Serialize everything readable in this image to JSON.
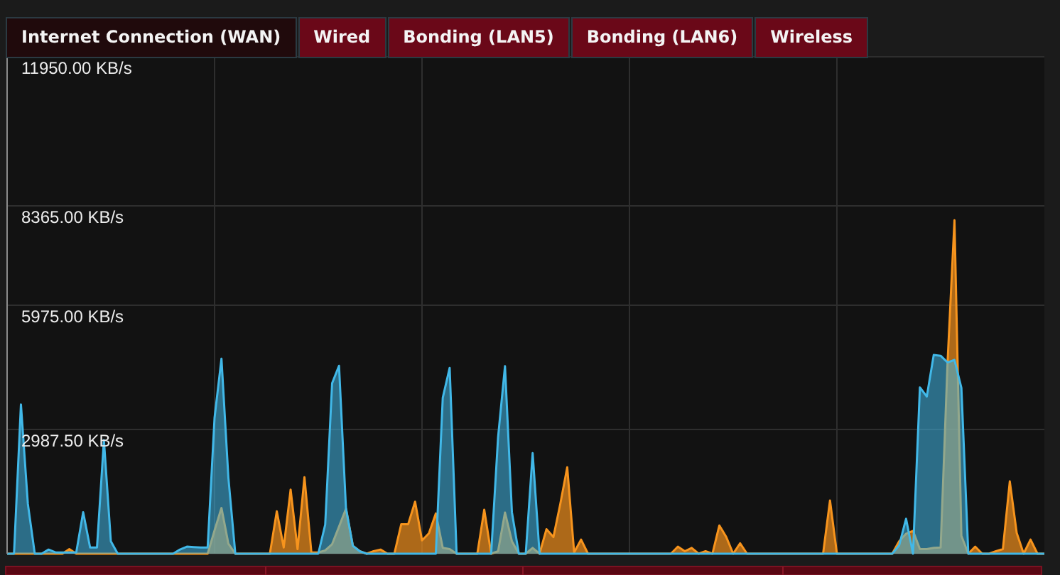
{
  "chart_data": {
    "type": "area",
    "title": "Internet Connection (WAN)",
    "annotations": [
      "Wired",
      "Bonding (LAN5)",
      "Bonding (LAN6)",
      "Wireless"
    ],
    "categories": [
      null,
      null,
      null,
      null,
      null,
      null,
      null,
      null,
      null,
      null,
      null,
      null,
      null,
      null,
      null,
      null,
      null,
      null,
      null,
      null,
      null,
      null,
      null,
      null,
      null,
      null,
      null,
      null,
      null,
      null,
      null,
      null,
      null,
      null,
      null,
      null,
      null,
      null,
      null,
      null,
      null,
      null,
      null,
      null,
      null,
      null,
      null,
      null,
      null,
      null,
      null,
      null,
      null,
      null,
      null,
      null,
      null,
      null,
      null,
      null,
      null,
      null,
      null,
      null,
      null,
      null,
      null,
      null,
      null,
      null,
      null,
      null,
      null,
      null,
      null,
      null,
      null,
      null,
      null,
      null,
      null,
      null,
      null,
      null,
      null,
      null,
      null,
      null,
      null,
      null,
      null,
      null,
      null,
      null,
      null,
      null,
      null,
      null,
      null,
      null,
      null,
      null,
      null,
      null,
      null,
      null,
      null,
      null,
      null,
      null,
      null,
      null,
      null,
      null,
      null,
      null,
      null,
      null,
      null,
      null,
      null,
      null,
      null,
      null,
      null,
      null,
      null,
      null,
      null,
      null,
      null,
      null,
      null,
      null,
      null,
      null,
      null,
      null,
      null,
      null,
      null,
      null,
      null,
      null,
      null,
      null,
      null,
      null,
      null,
      null,
      null
    ],
    "ylim": [
      0,
      11950
    ],
    "yticks": [
      {
        "value": 2987.5,
        "label": "2987.50 KB/s"
      },
      {
        "value": 5975,
        "label": "5975.00 KB/s"
      },
      {
        "value": 8365,
        "label": "8365.00 KB/s"
      },
      {
        "value": 11950,
        "label": "11950.00 KB/s"
      }
    ],
    "grid": true,
    "series": [
      {
        "color": "#f7941d",
        "values": [
          0,
          0,
          0,
          0,
          0,
          0,
          0,
          0,
          0,
          110,
          0,
          0,
          0,
          0,
          0,
          0,
          0,
          0,
          0,
          0,
          0,
          0,
          0,
          0,
          0,
          0,
          0,
          0,
          0,
          0,
          560,
          1100,
          240,
          0,
          0,
          0,
          0,
          0,
          0,
          1020,
          150,
          1540,
          110,
          1840,
          30,
          30,
          80,
          230,
          650,
          1080,
          190,
          60,
          0,
          60,
          100,
          0,
          0,
          710,
          710,
          1250,
          320,
          490,
          970,
          140,
          110,
          0,
          0,
          0,
          0,
          1060,
          0,
          60,
          990,
          300,
          0,
          0,
          140,
          0,
          590,
          400,
          1200,
          2080,
          30,
          340,
          0,
          0,
          0,
          0,
          0,
          0,
          0,
          0,
          0,
          0,
          0,
          0,
          0,
          170,
          60,
          140,
          0,
          60,
          0,
          680,
          400,
          0,
          250,
          0,
          0,
          0,
          0,
          0,
          0,
          0,
          0,
          0,
          0,
          0,
          0,
          1280,
          0,
          0,
          0,
          0,
          0,
          0,
          0,
          0,
          0,
          300,
          480,
          550,
          110,
          110,
          140,
          150,
          4600,
          8020,
          430,
          0,
          170,
          0,
          0,
          60,
          110,
          1740,
          500,
          0,
          340,
          0,
          0
        ]
      },
      {
        "color": "#41b8e8",
        "values": [
          0,
          0,
          3590,
          1200,
          0,
          0,
          100,
          30,
          30,
          30,
          30,
          1000,
          150,
          150,
          2730,
          300,
          0,
          0,
          0,
          0,
          0,
          0,
          0,
          0,
          0,
          100,
          170,
          160,
          150,
          150,
          3270,
          4690,
          1830,
          0,
          0,
          0,
          0,
          0,
          0,
          0,
          0,
          0,
          0,
          0,
          0,
          0,
          700,
          4100,
          4520,
          1100,
          190,
          60,
          0,
          0,
          0,
          0,
          0,
          0,
          0,
          0,
          0,
          0,
          0,
          3750,
          4470,
          0,
          0,
          0,
          0,
          0,
          0,
          2800,
          4510,
          1000,
          0,
          0,
          2420,
          0,
          0,
          0,
          0,
          0,
          0,
          0,
          0,
          0,
          0,
          0,
          0,
          0,
          0,
          0,
          0,
          0,
          0,
          0,
          0,
          0,
          0,
          0,
          0,
          0,
          0,
          0,
          0,
          0,
          0,
          0,
          0,
          0,
          0,
          0,
          0,
          0,
          0,
          0,
          0,
          0,
          0,
          0,
          0,
          0,
          0,
          0,
          0,
          0,
          0,
          0,
          0,
          200,
          840,
          0,
          4000,
          3780,
          4780,
          4760,
          4600,
          4660,
          3990,
          0,
          0,
          0,
          0,
          0,
          0,
          0,
          0,
          0,
          0,
          0,
          0
        ]
      }
    ]
  }
}
